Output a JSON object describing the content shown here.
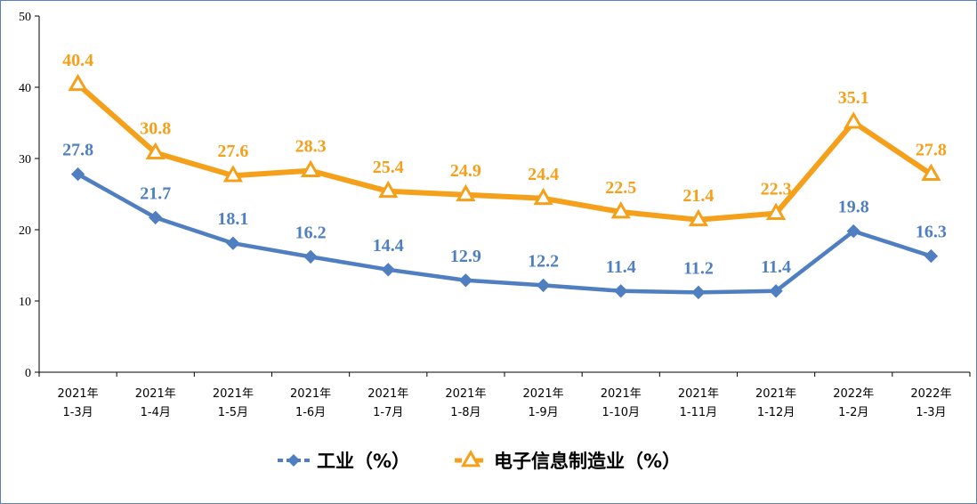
{
  "chart_data": {
    "type": "line",
    "title": "",
    "xlabel": "",
    "ylabel": "",
    "ylim": [
      0,
      50
    ],
    "yticks": [
      0,
      10,
      20,
      30,
      40,
      50
    ],
    "grid": false,
    "legend_position": "bottom",
    "categories": [
      [
        "2021年",
        "1-3月"
      ],
      [
        "2021年",
        "1-4月"
      ],
      [
        "2021年",
        "1-5月"
      ],
      [
        "2021年",
        "1-6月"
      ],
      [
        "2021年",
        "1-7月"
      ],
      [
        "2021年",
        "1-8月"
      ],
      [
        "2021年",
        "1-9月"
      ],
      [
        "2021年",
        "1-10月"
      ],
      [
        "2021年",
        "1-11月"
      ],
      [
        "2021年",
        "1-12月"
      ],
      [
        "2022年",
        "1-2月"
      ],
      [
        "2022年",
        "1-3月"
      ]
    ],
    "series": [
      {
        "name": "工业（%）",
        "color": "#4f7fc0",
        "marker": "diamond",
        "values": [
          27.8,
          21.7,
          18.1,
          16.2,
          14.4,
          12.9,
          12.2,
          11.4,
          11.2,
          11.4,
          19.8,
          16.3
        ]
      },
      {
        "name": "电子信息制造业（%）",
        "color": "#f5a01a",
        "marker": "triangle",
        "values": [
          40.4,
          30.8,
          27.6,
          28.3,
          25.4,
          24.9,
          24.4,
          22.5,
          21.4,
          22.3,
          35.1,
          27.8
        ]
      }
    ]
  }
}
